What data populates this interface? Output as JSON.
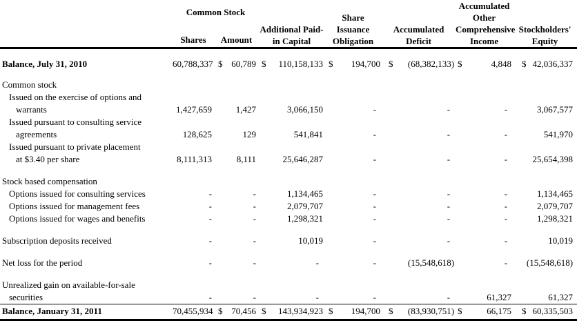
{
  "table": {
    "currency_symbol": "$",
    "header": {
      "common_stock": "Common Stock",
      "shares": "Shares",
      "amount": "Amount",
      "additional_paid_in_capital": "Additional Paid-\nin Capital",
      "share_issuance_obligation": "Share\nIssuance\nObligation",
      "accumulated_deficit": "Accumulated\nDeficit",
      "accumulated_other_comprehensive_income": "Accumulated\nOther\nComprehensive\nIncome",
      "stockholders_equity": "Stockholders'\nEquity"
    },
    "rows": [
      {
        "kind": "balance",
        "bold": true,
        "dollars": true,
        "label": [
          {
            "t": "Balance, July 31, 2010",
            "i": 0
          }
        ],
        "values": [
          "60,788,337",
          "60,789",
          "110,158,133",
          "194,700",
          "(68,382,133)",
          "4,848",
          "42,036,337"
        ]
      },
      {
        "kind": "spacer",
        "height": 12
      },
      {
        "kind": "section",
        "bold": false,
        "dollars": false,
        "label": [
          {
            "t": "Common stock",
            "i": 0
          }
        ],
        "values": [
          "",
          "",
          "",
          "",
          "",
          "",
          ""
        ]
      },
      {
        "kind": "item",
        "bold": false,
        "dollars": false,
        "label": [
          {
            "t": "Issued on the exercise of options and",
            "i": 1
          },
          {
            "t": "warrants",
            "i": 2
          }
        ],
        "values": [
          "1,427,659",
          "1,427",
          "3,066,150",
          "-",
          "-",
          "-",
          "3,067,577"
        ]
      },
      {
        "kind": "item",
        "bold": false,
        "dollars": false,
        "label": [
          {
            "t": "Issued pursuant to consulting service",
            "i": 1
          },
          {
            "t": "agreements",
            "i": 2
          }
        ],
        "values": [
          "128,625",
          "129",
          "541,841",
          "-",
          "-",
          "-",
          "541,970"
        ]
      },
      {
        "kind": "item",
        "bold": false,
        "dollars": false,
        "label": [
          {
            "t": "Issued pursuant to private placement",
            "i": 1
          },
          {
            "t": "at $3.40 per share",
            "i": 2
          }
        ],
        "values": [
          "8,111,313",
          "8,111",
          "25,646,287",
          "-",
          "-",
          "-",
          "25,654,398"
        ]
      },
      {
        "kind": "spacer",
        "height": 14
      },
      {
        "kind": "section",
        "bold": false,
        "dollars": false,
        "label": [
          {
            "t": "Stock based compensation",
            "i": 0
          }
        ],
        "values": [
          "",
          "",
          "",
          "",
          "",
          "",
          ""
        ]
      },
      {
        "kind": "item",
        "bold": false,
        "dollars": false,
        "label": [
          {
            "t": "Options issued for consulting services",
            "i": 1
          }
        ],
        "values": [
          "-",
          "-",
          "1,134,465",
          "-",
          "-",
          "-",
          "1,134,465"
        ]
      },
      {
        "kind": "item",
        "bold": false,
        "dollars": false,
        "label": [
          {
            "t": "Options issued for management fees",
            "i": 1
          }
        ],
        "values": [
          "-",
          "-",
          "2,079,707",
          "-",
          "-",
          "-",
          "2,079,707"
        ]
      },
      {
        "kind": "item",
        "bold": false,
        "dollars": false,
        "label": [
          {
            "t": "Options issued for wages and benefits",
            "i": 1
          }
        ],
        "values": [
          "-",
          "-",
          "1,298,321",
          "-",
          "-",
          "-",
          "1,298,321"
        ]
      },
      {
        "kind": "spacer",
        "height": 14
      },
      {
        "kind": "item",
        "bold": false,
        "dollars": false,
        "label": [
          {
            "t": "Subscription deposits received",
            "i": 0
          }
        ],
        "values": [
          "-",
          "-",
          "10,019",
          "-",
          "-",
          "-",
          "10,019"
        ]
      },
      {
        "kind": "spacer",
        "height": 14
      },
      {
        "kind": "item",
        "bold": false,
        "dollars": false,
        "label": [
          {
            "t": "Net loss for the period",
            "i": 0
          }
        ],
        "values": [
          "-",
          "-",
          "-",
          "-",
          "(15,548,618)",
          "-",
          "(15,548,618)"
        ]
      },
      {
        "kind": "spacer",
        "height": 14
      },
      {
        "kind": "item",
        "bold": false,
        "dollars": false,
        "label": [
          {
            "t": "Unrealized gain on available-for-sale",
            "i": 0
          },
          {
            "t": "securities",
            "i": 1
          }
        ],
        "values": [
          "-",
          "-",
          "-",
          "-",
          "-",
          "61,327",
          "61,327"
        ]
      },
      {
        "kind": "balance",
        "bold": true,
        "dollars": true,
        "final": true,
        "label": [
          {
            "t": "Balance, January 31, 2011",
            "i": 0
          }
        ],
        "values": [
          "70,455,934",
          "70,456",
          "143,934,923",
          "194,700",
          "(83,930,751)",
          "66,175",
          "60,335,503"
        ]
      }
    ]
  }
}
